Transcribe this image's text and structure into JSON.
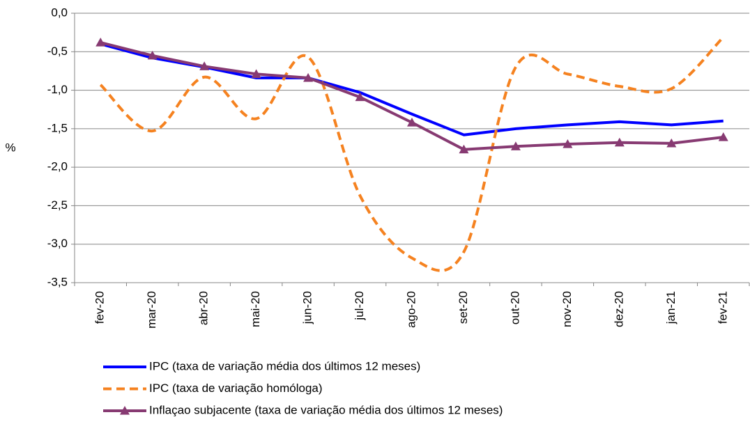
{
  "chart_data": {
    "type": "line",
    "y_label": "%",
    "categories": [
      "fev-20",
      "mar-20",
      "abr-20",
      "mai-20",
      "jun-20",
      "jul-20",
      "ago-20",
      "set-20",
      "out-20",
      "nov-20",
      "dez-20",
      "jan-21",
      "fev-21"
    ],
    "series": [
      {
        "name": "IPC (taxa de variação média dos últimos 12 meses)",
        "color": "#0000ff",
        "dash": false,
        "marker": "none",
        "values": [
          -0.4,
          -0.58,
          -0.7,
          -0.84,
          -0.84,
          -1.03,
          -1.31,
          -1.58,
          -1.5,
          -1.45,
          -1.41,
          -1.45,
          -1.4
        ]
      },
      {
        "name": "IPC (taxa de variação homóloga)",
        "color": "#f58220",
        "dash": true,
        "smooth": true,
        "marker": "none",
        "values": [
          -0.93,
          -1.53,
          -0.83,
          -1.37,
          -0.57,
          -2.37,
          -3.18,
          -3.1,
          -0.7,
          -0.79,
          -0.95,
          -0.98,
          -0.31
        ]
      },
      {
        "name": "Inflaçao subjacente (taxa de variação média dos últimos 12 meses)",
        "color": "#873a72",
        "dash": false,
        "marker": "triangle",
        "values": [
          -0.38,
          -0.55,
          -0.69,
          -0.79,
          -0.84,
          -1.09,
          -1.42,
          -1.77,
          -1.73,
          -1.7,
          -1.68,
          -1.69,
          -1.61
        ]
      }
    ],
    "ylim": [
      -3.5,
      0
    ],
    "yticks": [
      {
        "value": 0,
        "label": "0,0"
      },
      {
        "value": -0.5,
        "label": "-0,5"
      },
      {
        "value": -1,
        "label": "-1,0"
      },
      {
        "value": -1.5,
        "label": "-1,5"
      },
      {
        "value": -2,
        "label": "-2,0"
      },
      {
        "value": -2.5,
        "label": "-2,5"
      },
      {
        "value": -3,
        "label": "-3,0"
      },
      {
        "value": -3.5,
        "label": "-3,5"
      }
    ],
    "grid": true
  }
}
